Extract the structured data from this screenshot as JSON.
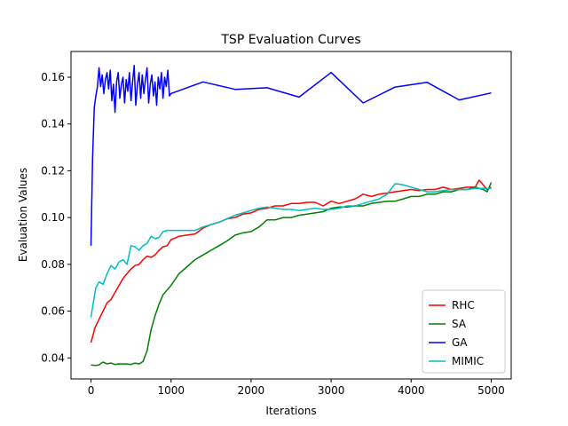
{
  "chart_data": {
    "type": "line",
    "title": "TSP Evaluation Curves",
    "xlabel": "Iterations",
    "ylabel": "Evaluation Values",
    "xlim": [
      -250,
      5250
    ],
    "ylim": [
      0.031,
      0.171
    ],
    "xticks": [
      0,
      1000,
      2000,
      3000,
      4000,
      5000
    ],
    "yticks": [
      0.04,
      0.06,
      0.08,
      0.1,
      0.12,
      0.14,
      0.16
    ],
    "ytick_labels": [
      "0.04",
      "0.06",
      "0.08",
      "0.10",
      "0.12",
      "0.14",
      "0.16"
    ],
    "grid": false,
    "legend_position": "lower right",
    "series": [
      {
        "name": "RHC",
        "color": "#ff0000",
        "x": [
          0,
          50,
          100,
          150,
          200,
          250,
          300,
          350,
          400,
          450,
          500,
          550,
          600,
          650,
          700,
          750,
          800,
          850,
          900,
          950,
          1000,
          1100,
          1200,
          1300,
          1400,
          1500,
          1600,
          1700,
          1800,
          1900,
          2000,
          2100,
          2200,
          2300,
          2400,
          2500,
          2600,
          2700,
          2800,
          2900,
          3000,
          3100,
          3200,
          3300,
          3400,
          3500,
          3600,
          3700,
          3800,
          3900,
          4000,
          4100,
          4200,
          4300,
          4400,
          4500,
          4600,
          4700,
          4800,
          4850,
          4900,
          4950,
          5000
        ],
        "y": [
          0.0465,
          0.053,
          0.0565,
          0.06,
          0.0635,
          0.065,
          0.068,
          0.071,
          0.074,
          0.076,
          0.078,
          0.0795,
          0.08,
          0.082,
          0.0835,
          0.083,
          0.084,
          0.086,
          0.0875,
          0.088,
          0.0905,
          0.092,
          0.0925,
          0.093,
          0.0955,
          0.097,
          0.098,
          0.0995,
          0.1,
          0.1015,
          0.102,
          0.1035,
          0.104,
          0.105,
          0.105,
          0.106,
          0.106,
          0.1065,
          0.1065,
          0.105,
          0.107,
          0.106,
          0.107,
          0.108,
          0.11,
          0.109,
          0.11,
          0.1105,
          0.111,
          0.1115,
          0.112,
          0.1115,
          0.112,
          0.112,
          0.113,
          0.112,
          0.1125,
          0.113,
          0.113,
          0.116,
          0.114,
          0.112,
          0.113
        ]
      },
      {
        "name": "SA",
        "color": "#008000",
        "x": [
          0,
          50,
          100,
          150,
          200,
          250,
          300,
          350,
          400,
          450,
          500,
          550,
          600,
          650,
          700,
          750,
          800,
          850,
          900,
          950,
          1000,
          1100,
          1200,
          1300,
          1400,
          1500,
          1600,
          1700,
          1800,
          1900,
          2000,
          2100,
          2200,
          2300,
          2400,
          2500,
          2600,
          2700,
          2800,
          2900,
          3000,
          3100,
          3200,
          3300,
          3400,
          3500,
          3600,
          3700,
          3800,
          3900,
          4000,
          4100,
          4200,
          4300,
          4400,
          4500,
          4600,
          4700,
          4800,
          4900,
          4950,
          5000
        ],
        "y": [
          0.037,
          0.0368,
          0.037,
          0.0382,
          0.0375,
          0.0378,
          0.0372,
          0.0375,
          0.0374,
          0.0374,
          0.0372,
          0.0378,
          0.0374,
          0.0385,
          0.043,
          0.052,
          0.058,
          0.063,
          0.067,
          0.069,
          0.071,
          0.076,
          0.079,
          0.082,
          0.084,
          0.086,
          0.088,
          0.09,
          0.0925,
          0.0935,
          0.094,
          0.096,
          0.099,
          0.099,
          0.1,
          0.1,
          0.101,
          0.1015,
          0.102,
          0.1025,
          0.104,
          0.1045,
          0.1045,
          0.105,
          0.105,
          0.106,
          0.1065,
          0.107,
          0.107,
          0.108,
          0.109,
          0.109,
          0.11,
          0.11,
          0.111,
          0.111,
          0.112,
          0.112,
          0.113,
          0.112,
          0.111,
          0.115
        ]
      },
      {
        "name": "GA",
        "color": "#0000ff",
        "x": [
          0,
          20,
          40,
          60,
          80,
          100,
          120,
          140,
          160,
          180,
          200,
          220,
          240,
          260,
          280,
          300,
          320,
          340,
          360,
          380,
          400,
          420,
          440,
          460,
          480,
          500,
          520,
          540,
          560,
          580,
          600,
          620,
          640,
          660,
          680,
          700,
          720,
          740,
          760,
          780,
          800,
          820,
          840,
          860,
          880,
          900,
          920,
          940,
          960,
          980,
          1000,
          1400,
          1800,
          2200,
          2600,
          3000,
          3400,
          3800,
          4200,
          4600,
          5000
        ],
        "y": [
          0.088,
          0.125,
          0.147,
          0.152,
          0.156,
          0.164,
          0.156,
          0.161,
          0.153,
          0.159,
          0.162,
          0.155,
          0.163,
          0.15,
          0.157,
          0.145,
          0.158,
          0.162,
          0.151,
          0.157,
          0.16,
          0.149,
          0.159,
          0.154,
          0.162,
          0.15,
          0.158,
          0.165,
          0.148,
          0.157,
          0.162,
          0.151,
          0.161,
          0.153,
          0.159,
          0.164,
          0.149,
          0.157,
          0.161,
          0.152,
          0.158,
          0.148,
          0.16,
          0.155,
          0.162,
          0.151,
          0.16,
          0.156,
          0.163,
          0.152,
          0.153,
          0.158,
          0.1548,
          0.1555,
          0.1515,
          0.162,
          0.149,
          0.1558,
          0.1578,
          0.1503,
          0.1533
        ]
      },
      {
        "name": "MIMIC",
        "color": "#00bfbf",
        "x": [
          0,
          30,
          60,
          100,
          150,
          200,
          250,
          300,
          350,
          400,
          450,
          500,
          550,
          600,
          650,
          700,
          750,
          800,
          850,
          900,
          950,
          1000,
          1100,
          1200,
          1300,
          1400,
          1500,
          1600,
          1700,
          1800,
          1900,
          2000,
          2100,
          2200,
          2300,
          2400,
          2500,
          2600,
          2700,
          2800,
          2900,
          3000,
          3100,
          3200,
          3300,
          3400,
          3500,
          3600,
          3700,
          3800,
          3900,
          4000,
          4100,
          4200,
          4300,
          4400,
          4500,
          4600,
          4700,
          4800,
          4900,
          5000
        ],
        "y": [
          0.0575,
          0.064,
          0.07,
          0.0725,
          0.0715,
          0.076,
          0.0795,
          0.078,
          0.081,
          0.082,
          0.08,
          0.088,
          0.0875,
          0.086,
          0.088,
          0.089,
          0.092,
          0.091,
          0.0915,
          0.094,
          0.0945,
          0.0945,
          0.0945,
          0.0945,
          0.0945,
          0.096,
          0.097,
          0.098,
          0.0995,
          0.101,
          0.102,
          0.103,
          0.104,
          0.1045,
          0.104,
          0.1035,
          0.1035,
          0.103,
          0.1035,
          0.104,
          0.1035,
          0.1035,
          0.104,
          0.105,
          0.105,
          0.106,
          0.107,
          0.108,
          0.11,
          0.1145,
          0.114,
          0.113,
          0.112,
          0.111,
          0.111,
          0.1115,
          0.112,
          0.112,
          0.112,
          0.1125,
          0.1125,
          0.1125
        ]
      }
    ]
  }
}
